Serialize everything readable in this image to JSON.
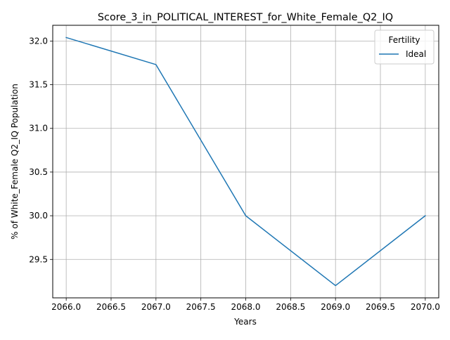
{
  "chart_data": {
    "type": "line",
    "title": "Score_3_in_POLITICAL_INTEREST_for_White_Female_Q2_IQ",
    "xlabel": "Years",
    "ylabel": "% of White_Female Q2_IQ Population",
    "xlim": [
      2065.85,
      2070.15
    ],
    "ylim": [
      29.06,
      32.18
    ],
    "x_ticks": [
      2066.0,
      2066.5,
      2067.0,
      2067.5,
      2068.0,
      2068.5,
      2069.0,
      2069.5,
      2070.0
    ],
    "x_tick_labels": [
      "2066.0",
      "2066.5",
      "2067.0",
      "2067.5",
      "2068.0",
      "2068.5",
      "2069.0",
      "2069.5",
      "2070.0"
    ],
    "y_ticks": [
      29.5,
      30.0,
      30.5,
      31.0,
      31.5,
      32.0
    ],
    "y_tick_labels": [
      "29.5",
      "30.0",
      "30.5",
      "31.0",
      "31.5",
      "32.0"
    ],
    "grid": true,
    "legend": {
      "title": "Fertility",
      "placement": "top-right"
    },
    "x": [
      2066,
      2067,
      2068,
      2069,
      2070
    ],
    "series": [
      {
        "name": "Ideal",
        "color": "#1f77b4",
        "values": [
          32.04,
          31.73,
          30.0,
          29.2,
          30.0
        ]
      }
    ]
  }
}
